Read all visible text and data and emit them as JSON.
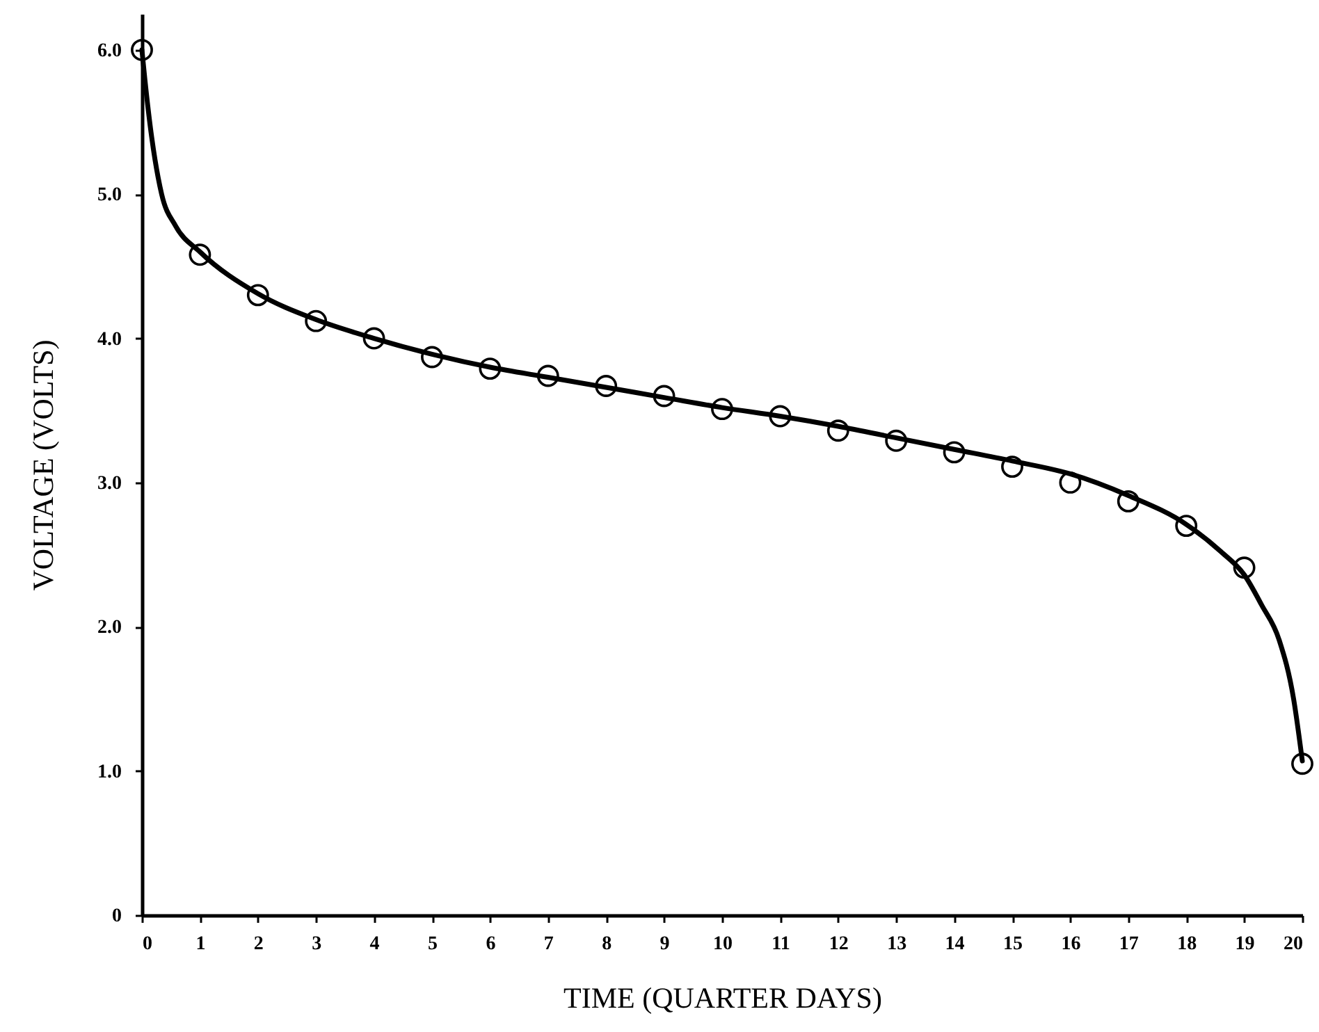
{
  "chart_data": {
    "type": "scatter",
    "xlabel": "TIME (QUARTER  DAYS)",
    "ylabel": "VOLTAGE (VOLTS)",
    "xlim": [
      0,
      20
    ],
    "xticks": [
      0,
      1,
      2,
      3,
      4,
      5,
      6,
      7,
      8,
      9,
      10,
      11,
      12,
      13,
      14,
      15,
      16,
      17,
      18,
      19,
      20
    ],
    "ylim": [
      0,
      6.25
    ],
    "yticks": [
      0,
      {
        "value": 1,
        "label": "1.0"
      },
      {
        "value": 2,
        "label": "2.0"
      },
      {
        "value": 3,
        "label": "3.0"
      },
      {
        "value": 4,
        "label": "4.0"
      },
      {
        "value": 5,
        "label": "5.0"
      },
      {
        "value": 6,
        "label": "6.0"
      }
    ],
    "grid": false,
    "series": [
      {
        "type": "line",
        "color": "#000000",
        "marker": "none",
        "line_style": "solid",
        "x": [
          0,
          0.05,
          0.17,
          0.34,
          0.58,
          1,
          2,
          3,
          4,
          5,
          6,
          7,
          8,
          9,
          10,
          11,
          12,
          13,
          14,
          15,
          16,
          17,
          18,
          18.6,
          19,
          19.3,
          19.6,
          19.85,
          20
        ],
        "values": [
          6.0,
          5.8,
          5.39,
          5.0,
          4.78,
          4.6,
          4.31,
          4.13,
          4.0,
          3.89,
          3.8,
          3.73,
          3.66,
          3.59,
          3.52,
          3.46,
          3.39,
          3.31,
          3.23,
          3.15,
          3.06,
          2.91,
          2.71,
          2.52,
          2.36,
          2.15,
          1.91,
          1.5,
          1.07
        ]
      },
      {
        "color": "#000000",
        "marker": "circle",
        "x": [
          0,
          1,
          2,
          3,
          4,
          5,
          6,
          7,
          8,
          9,
          10,
          11,
          12,
          13,
          14,
          15,
          16,
          17,
          18,
          19,
          20
        ],
        "values": [
          6.0,
          4.58,
          4.3,
          4.12,
          4.0,
          3.87,
          3.79,
          3.74,
          3.67,
          3.6,
          3.51,
          3.46,
          3.36,
          3.29,
          3.21,
          3.11,
          3.0,
          2.87,
          2.7,
          2.41,
          1.05
        ]
      }
    ]
  }
}
